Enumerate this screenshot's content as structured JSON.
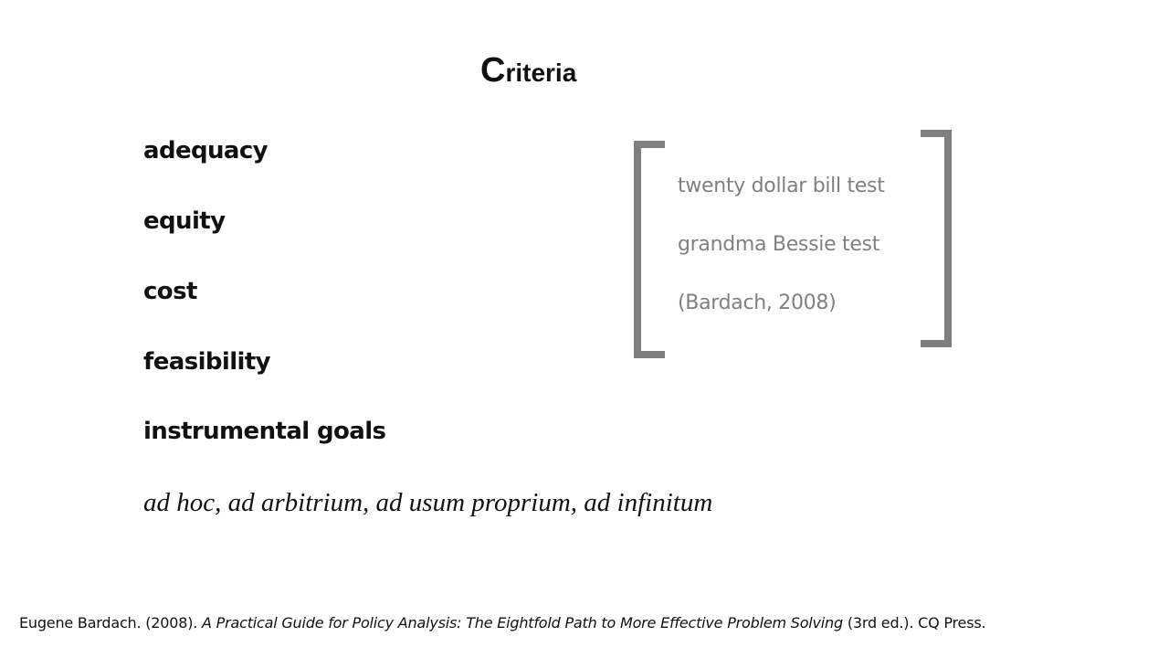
{
  "title": {
    "first_letter": "C",
    "rest": "riteria"
  },
  "criteria": [
    "adequacy",
    "equity",
    "cost",
    "feasibility",
    "instrumental goals"
  ],
  "latin_phrase": "ad hoc, ad arbitrium, ad usum proprium, ad infinitum",
  "tests": [
    "twenty dollar bill test",
    "grandma Bessie test",
    "(Bardach, 2008)"
  ],
  "citation": {
    "author_year": "Eugene Bardach. (2008). ",
    "book_title": "A Practical Guide for Policy Analysis: The Eightfold Path to More Effective Problem Solving",
    "edition_publisher": " (3rd ed.). CQ Press."
  }
}
